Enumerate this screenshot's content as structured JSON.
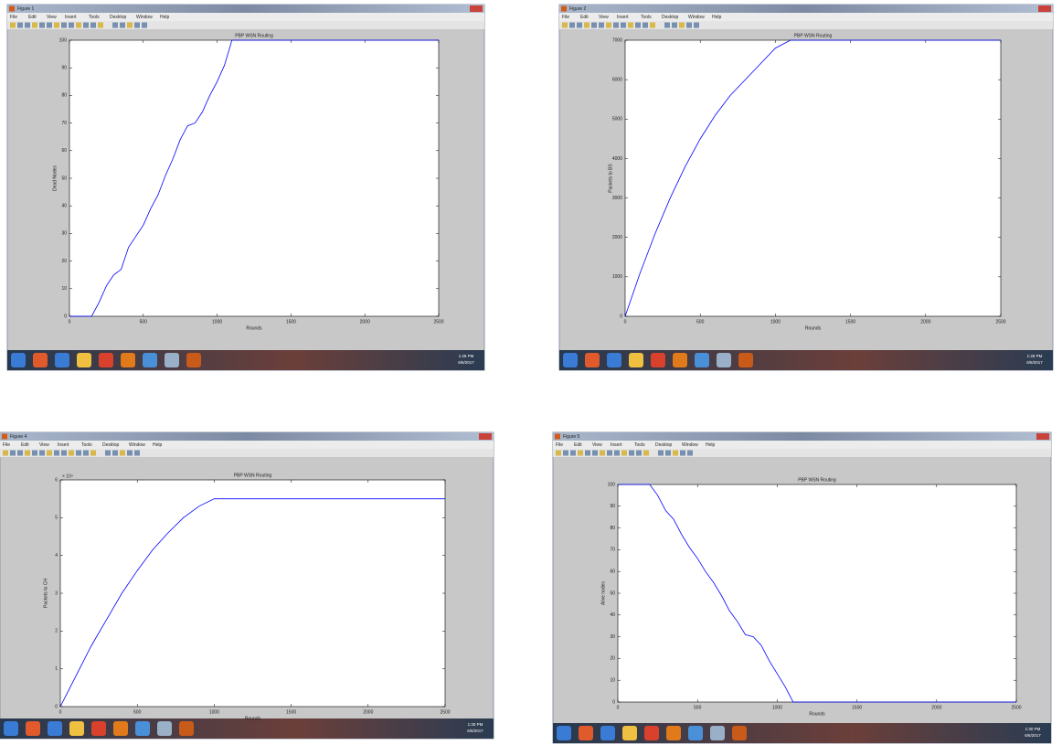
{
  "windows": [
    {
      "title": "Figure 1",
      "menu": [
        "File",
        "Edit",
        "View",
        "Insert",
        "Tools",
        "Desktop",
        "Window",
        "Help"
      ],
      "clock": "1:28 PM",
      "date": "6/6/2017"
    },
    {
      "title": "Figure 2",
      "menu": [
        "File",
        "Edit",
        "View",
        "Insert",
        "Tools",
        "Desktop",
        "Window",
        "Help"
      ],
      "clock": "1:28 PM",
      "date": "6/6/2017"
    },
    {
      "title": "Figure 4",
      "menu": [
        "File",
        "Edit",
        "View",
        "Insert",
        "Tools",
        "Desktop",
        "Window",
        "Help"
      ],
      "clock": "1:30 PM",
      "date": "6/6/2017"
    },
    {
      "title": "Figure 5",
      "menu": [
        "File",
        "Edit",
        "View",
        "Insert",
        "Tools",
        "Desktop",
        "Window",
        "Help"
      ],
      "clock": "1:30 PM",
      "date": "6/6/2017"
    }
  ],
  "chart_data": [
    {
      "type": "line",
      "title": "PBP WSN Routing",
      "x_label": "Rounds",
      "y_label": "Dead Nodes",
      "color": "#0000ff",
      "x": [
        0,
        150,
        200,
        250,
        300,
        350,
        400,
        450,
        500,
        550,
        600,
        650,
        700,
        750,
        800,
        850,
        900,
        950,
        1000,
        1050,
        1100,
        2500
      ],
      "values": [
        0,
        0,
        5,
        11,
        15,
        17,
        25,
        29,
        33,
        39,
        44,
        51,
        57,
        64,
        69,
        70,
        74,
        80,
        85,
        91,
        100,
        100
      ],
      "xlim": [
        0,
        2500
      ],
      "xticks": [
        0,
        500,
        1000,
        1500,
        2000,
        2500
      ],
      "ylim": [
        0,
        100
      ],
      "yticks": [
        0,
        10,
        20,
        30,
        40,
        50,
        60,
        70,
        80,
        90,
        100
      ]
    },
    {
      "type": "line",
      "title": "PBP WSN Routing",
      "x_label": "Rounds",
      "y_label": "Packets to BS",
      "color": "#0000ff",
      "x": [
        0,
        100,
        200,
        300,
        400,
        500,
        600,
        700,
        800,
        900,
        1000,
        1100,
        2500
      ],
      "values": [
        0,
        1100,
        2100,
        3000,
        3800,
        4500,
        5100,
        5600,
        6000,
        6400,
        6800,
        7000,
        7000
      ],
      "xlim": [
        0,
        2500
      ],
      "xticks": [
        0,
        500,
        1000,
        1500,
        2000,
        2500
      ],
      "ylim": [
        0,
        7000
      ],
      "yticks": [
        0,
        1000,
        2000,
        3000,
        4000,
        5000,
        6000,
        7000
      ]
    },
    {
      "type": "line",
      "title": "PBP WSN Routing",
      "x_label": "Rounds",
      "y_label": "Packets to CH",
      "y_multiplier": "× 10⁴",
      "color": "#0000ff",
      "x": [
        0,
        100,
        200,
        300,
        400,
        500,
        600,
        700,
        800,
        900,
        1000,
        2500
      ],
      "values": [
        0,
        8000,
        16000,
        23000,
        30000,
        36000,
        41500,
        46000,
        50000,
        53000,
        55000,
        55000
      ],
      "xlim": [
        0,
        2500
      ],
      "xticks": [
        0,
        500,
        1000,
        1500,
        2000,
        2500
      ],
      "ylim": [
        0,
        60000
      ],
      "yticks": [
        {
          "value": 0,
          "label": "0"
        },
        {
          "value": 10000,
          "label": "1"
        },
        {
          "value": 20000,
          "label": "2"
        },
        {
          "value": 30000,
          "label": "3"
        },
        {
          "value": 40000,
          "label": "4"
        },
        {
          "value": 50000,
          "label": "5"
        },
        {
          "value": 60000,
          "label": "6"
        }
      ]
    },
    {
      "type": "line",
      "title": "PBP WSN Routing",
      "x_label": "Rounds",
      "y_label": "Alive nodes",
      "color": "#0000ff",
      "x": [
        0,
        150,
        200,
        250,
        300,
        350,
        400,
        450,
        500,
        550,
        600,
        650,
        700,
        750,
        800,
        850,
        900,
        950,
        1000,
        1050,
        1100,
        2500
      ],
      "values": [
        100,
        100,
        100,
        95,
        88,
        84,
        77,
        71,
        66,
        60,
        55,
        49,
        42,
        37,
        31,
        30,
        26,
        19,
        13,
        7,
        0,
        0
      ],
      "xlim": [
        0,
        2500
      ],
      "xticks": [
        0,
        500,
        1000,
        1500,
        2000,
        2500
      ],
      "ylim": [
        0,
        100
      ],
      "yticks": [
        0,
        10,
        20,
        30,
        40,
        50,
        60,
        70,
        80,
        90,
        100
      ]
    }
  ]
}
